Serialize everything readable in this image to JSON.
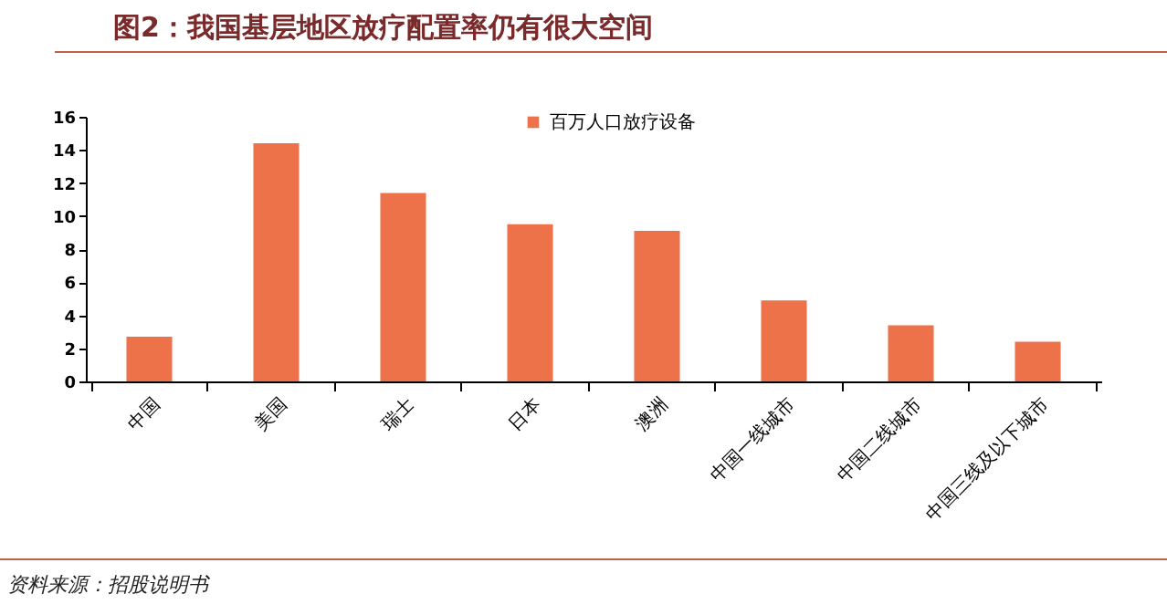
{
  "chart_data": {
    "type": "bar",
    "title": "图2：我国基层地区放疗配置率仍有很大空间",
    "categories": [
      "中国",
      "美国",
      "瑞士",
      "日本",
      "澳洲",
      "中国一线城市",
      "中国二线城市",
      "中国三线及以下城市"
    ],
    "series": [
      {
        "name": "百万人口放疗设备",
        "color": "#ed7149",
        "values": [
          2.7,
          14.4,
          11.4,
          9.5,
          9.1,
          4.9,
          3.4,
          2.4
        ]
      }
    ],
    "ylim": [
      0,
      16
    ],
    "yticks": [
      0,
      2,
      4,
      6,
      8,
      10,
      12,
      14,
      16
    ],
    "legend": "top",
    "annotations": [
      "资料来源：招股说明书"
    ]
  }
}
